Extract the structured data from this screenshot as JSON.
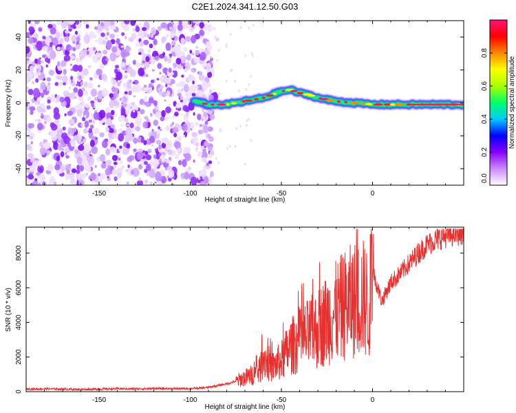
{
  "figure_title": "C2E1.2024.341.12.50.G03",
  "chart_data": [
    {
      "type": "heatmap",
      "xlabel": "Height of straight line (km)",
      "ylabel": "Frequency (Hz)",
      "xlim": [
        -190,
        50
      ],
      "ylim": [
        -50,
        50
      ],
      "x_ticks": [
        -150,
        -100,
        -50,
        0
      ],
      "y_ticks": [
        -40,
        -20,
        0,
        20,
        40
      ],
      "colorbar": {
        "label": "Normalized spectral amplitude",
        "range": [
          0,
          1
        ],
        "ticks": [
          "0.0",
          "0.2",
          "0.4",
          "0.6",
          "0.8"
        ],
        "colors": [
          "#ffffff",
          "#cc88ff",
          "#8800ff",
          "#0000ff",
          "#00ccff",
          "#00ff66",
          "#aaff00",
          "#ffff00",
          "#ff8800",
          "#ff0000",
          "#ff1177"
        ]
      },
      "noise_region_x": [
        -190,
        -88
      ],
      "ridge": {
        "x": [
          -98,
          -90,
          -80,
          -70,
          -60,
          -55,
          -50,
          -45,
          -40,
          -35,
          -30,
          -25,
          -20,
          -10,
          0,
          10,
          20,
          30,
          40,
          50
        ],
        "y": [
          1,
          -1,
          -1,
          1,
          3,
          5,
          7,
          8,
          6,
          5,
          3,
          2,
          1,
          0,
          -1,
          -1,
          -1,
          -1,
          -1,
          -1
        ]
      }
    },
    {
      "type": "line",
      "xlabel": "Height of straight line (km)",
      "ylabel": "SNR (10 * v/v)",
      "xlim": [
        -190,
        50
      ],
      "ylim": [
        0,
        9500
      ],
      "x_ticks": [
        -150,
        -100,
        -50,
        0
      ],
      "y_ticks": [
        0,
        2000,
        4000,
        6000,
        8000
      ],
      "series": [
        {
          "color": "#e8302f",
          "x": [
            -190,
            -180,
            -170,
            -160,
            -150,
            -140,
            -130,
            -120,
            -110,
            -100,
            -95,
            -90,
            -85,
            -80,
            -75,
            -70,
            -65,
            -62,
            -60,
            -55,
            -50,
            -45,
            -40,
            -35,
            -30,
            -25,
            -20,
            -15,
            -10,
            -5,
            -2,
            0,
            5,
            10,
            15,
            20,
            25,
            30,
            35,
            40,
            45,
            50
          ],
          "y": [
            150,
            160,
            150,
            130,
            150,
            170,
            160,
            180,
            170,
            180,
            200,
            250,
            350,
            450,
            600,
            800,
            1000,
            1200,
            2000,
            1400,
            1800,
            2600,
            2900,
            3300,
            3600,
            4200,
            4600,
            5000,
            5300,
            5400,
            5000,
            7000,
            5200,
            6300,
            6800,
            7400,
            8000,
            8500,
            8800,
            9000,
            9100,
            9200
          ]
        }
      ]
    }
  ]
}
